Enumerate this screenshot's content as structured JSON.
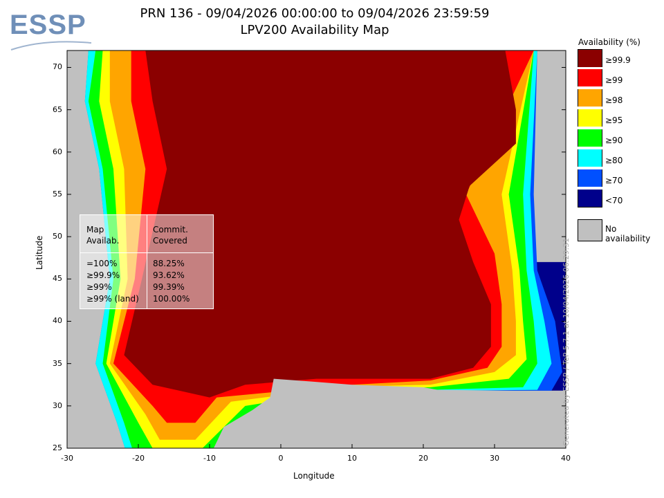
{
  "title_line1": "PRN 136 - 09/04/2026 00:00:00 to 09/04/2026 23:59:59",
  "title_line2": "LPV200 Availability Map",
  "logo": "ESSP",
  "legend": {
    "title": "Availability (%)",
    "items": [
      {
        "label": "≥99.9",
        "color": "#8b0000"
      },
      {
        "label": "≥99",
        "color": "#ff0000"
      },
      {
        "label": "≥98",
        "color": "#ffa500"
      },
      {
        "label": "≥95",
        "color": "#ffff00"
      },
      {
        "label": "≥90",
        "color": "#00ff00"
      },
      {
        "label": "≥80",
        "color": "#00ffff"
      },
      {
        "label": "≥70",
        "color": "#0050ff"
      },
      {
        "label": "<70",
        "color": "#00008b"
      }
    ],
    "no_availability": {
      "label": "No availability",
      "color": "#c0c0c0"
    }
  },
  "stats": {
    "col1_header": [
      "Map",
      "Availab."
    ],
    "col2_header": [
      "Commit.",
      "Covered"
    ],
    "rows": [
      {
        "map": "=100%",
        "covered": "88.25%"
      },
      {
        "map": "≥99.9%",
        "covered": "93.62%"
      },
      {
        "map": "≥99%",
        "covered": "99.39%"
      },
      {
        "map": "≥99% (land)",
        "covered": "100.00%"
      }
    ]
  },
  "generated": "Generated by ESSP / TeP 5.7.1 at 10/04/2026 06:29:31",
  "chart_data": {
    "type": "heatmap",
    "xlabel": "Longitude",
    "ylabel": "Latitude",
    "xlim": [
      -30,
      40
    ],
    "ylim": [
      25,
      72
    ],
    "xticks": [
      "-30",
      "-20",
      "-10",
      "0",
      "10",
      "20",
      "30",
      "40"
    ],
    "yticks": [
      "25",
      "30",
      "35",
      "40",
      "45",
      "50",
      "55",
      "60",
      "65",
      "70"
    ]
  }
}
